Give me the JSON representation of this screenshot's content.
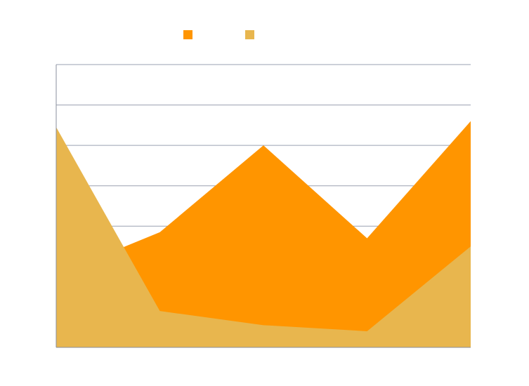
{
  "chart_data": {
    "type": "area",
    "title": "",
    "xlabel": "",
    "ylabel": "",
    "x": [
      1,
      2,
      3,
      4,
      5
    ],
    "ylim": [
      0,
      7
    ],
    "grid": true,
    "legend_position": "top",
    "series": [
      {
        "name": "",
        "color": "#ff9500",
        "values": [
          1.8,
          2.85,
          5.0,
          2.7,
          5.6
        ]
      },
      {
        "name": "",
        "color": "#e8b64e",
        "values": [
          5.45,
          0.9,
          0.55,
          0.4,
          2.5
        ]
      }
    ]
  }
}
